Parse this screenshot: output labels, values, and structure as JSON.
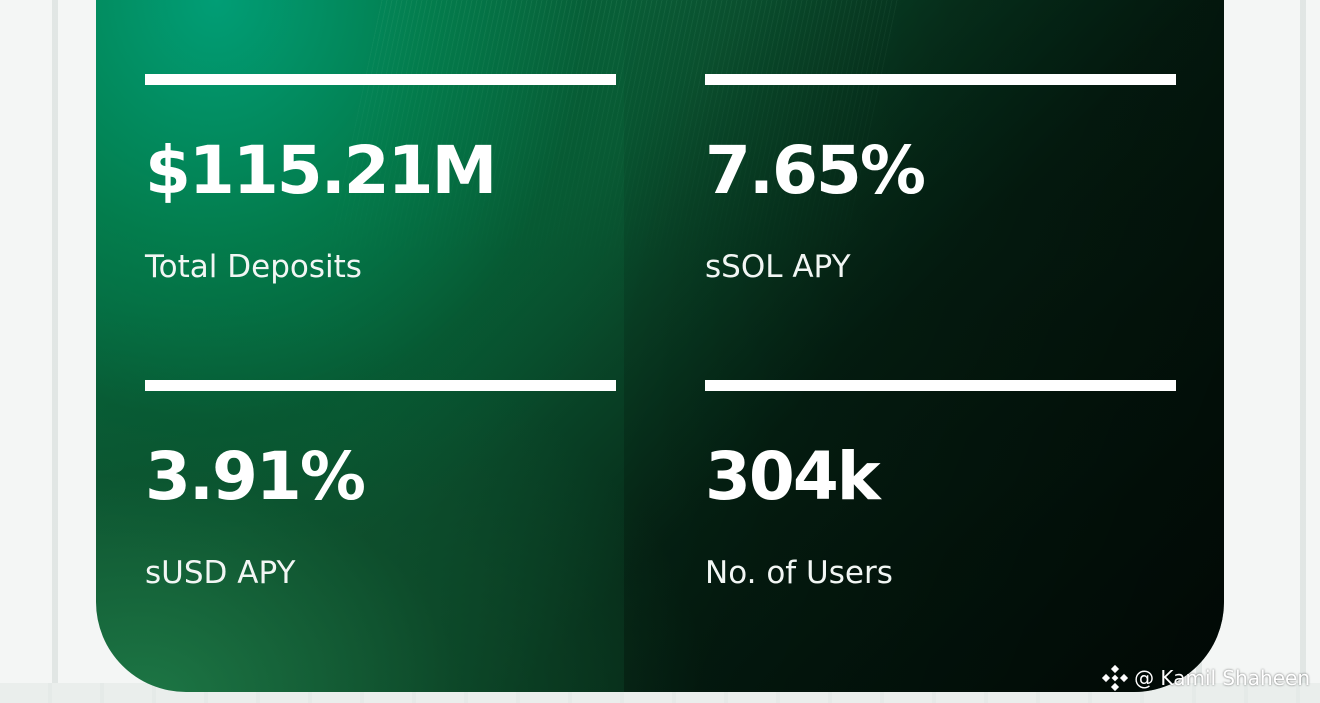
{
  "stats": [
    {
      "value": "$115.21M",
      "label": "Total Deposits"
    },
    {
      "value": "7.65%",
      "label": "sSOL APY"
    },
    {
      "value": "3.91%",
      "label": "sUSD APY"
    },
    {
      "value": "304k",
      "label": "No. of Users"
    }
  ],
  "watermark": {
    "handle": "@ Kamil Shaheen",
    "icon": "binance-logo-icon"
  },
  "colors": {
    "card_green": "#0b5a34",
    "card_dark": "#03130b",
    "text": "#ffffff",
    "background": "#f4f6f5"
  }
}
